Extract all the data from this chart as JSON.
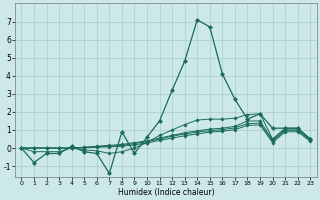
{
  "xlabel": "Humidex (Indice chaleur)",
  "xlim": [
    -0.5,
    23.5
  ],
  "ylim": [
    -1.6,
    8.0
  ],
  "yticks": [
    -1,
    0,
    1,
    2,
    3,
    4,
    5,
    6,
    7
  ],
  "xticks": [
    0,
    1,
    2,
    3,
    4,
    5,
    6,
    7,
    8,
    9,
    10,
    11,
    12,
    13,
    14,
    15,
    16,
    17,
    18,
    19,
    20,
    21,
    22,
    23
  ],
  "bg_color": "#cce8e8",
  "grid_color": "#aacccc",
  "line_color": "#1a6b5a",
  "series": [
    [
      0.0,
      -0.8,
      -0.3,
      -0.3,
      0.1,
      -0.2,
      -0.3,
      -1.4,
      0.9,
      -0.3,
      0.6,
      1.5,
      3.2,
      4.8,
      7.1,
      6.7,
      4.1,
      2.7,
      1.6,
      1.9,
      1.1,
      1.1,
      1.1,
      0.5
    ],
    [
      0.0,
      -0.2,
      -0.2,
      -0.2,
      0.0,
      -0.1,
      -0.15,
      -0.3,
      -0.2,
      0.0,
      0.3,
      0.7,
      1.0,
      1.3,
      1.55,
      1.6,
      1.6,
      1.65,
      1.85,
      1.9,
      0.5,
      1.1,
      1.1,
      0.5
    ],
    [
      0.0,
      0.0,
      0.0,
      0.0,
      0.0,
      0.05,
      0.1,
      0.15,
      0.2,
      0.3,
      0.4,
      0.55,
      0.7,
      0.85,
      0.95,
      1.05,
      1.1,
      1.2,
      1.5,
      1.5,
      0.45,
      1.05,
      1.05,
      0.5
    ],
    [
      0.0,
      0.0,
      0.0,
      0.0,
      0.0,
      0.03,
      0.07,
      0.1,
      0.15,
      0.25,
      0.35,
      0.5,
      0.65,
      0.78,
      0.88,
      0.96,
      1.02,
      1.12,
      1.35,
      1.38,
      0.38,
      0.98,
      0.98,
      0.43
    ],
    [
      0.0,
      0.0,
      0.0,
      0.0,
      0.0,
      0.02,
      0.05,
      0.07,
      0.1,
      0.18,
      0.28,
      0.42,
      0.55,
      0.68,
      0.78,
      0.88,
      0.93,
      1.02,
      1.25,
      1.28,
      0.3,
      0.9,
      0.9,
      0.38
    ]
  ]
}
